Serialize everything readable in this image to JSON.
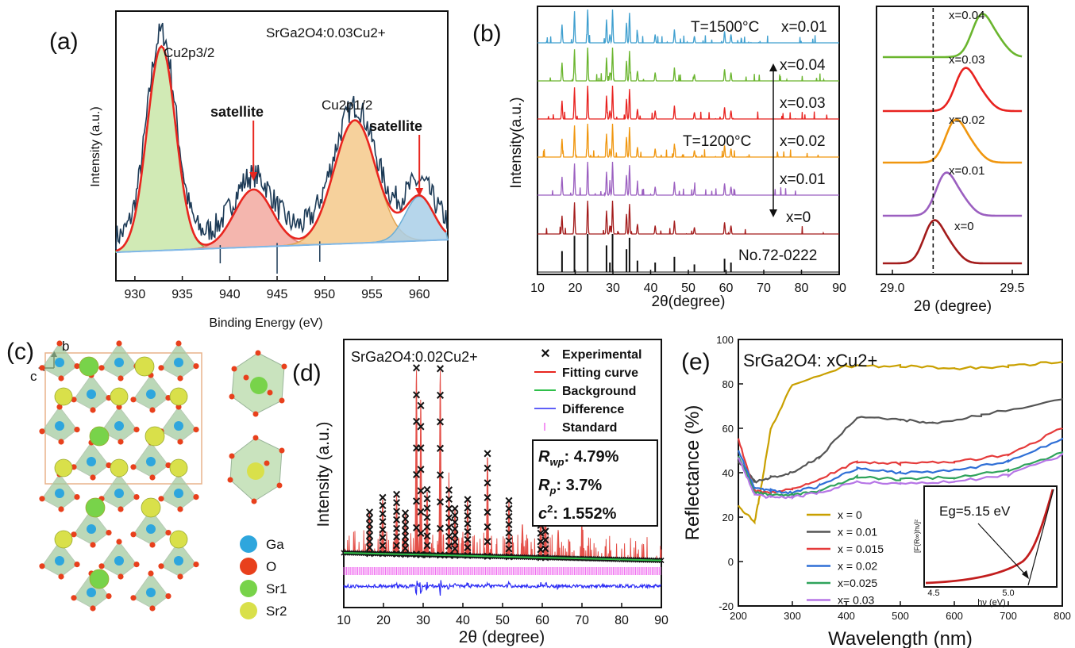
{
  "panels": {
    "a": {
      "label": "(a)",
      "formula": "SrGa2O4:0.03Cu2+",
      "peak1": "Cu2p3/2",
      "peak2": "Cu2p1/2",
      "sat1": "satellite",
      "sat2": "satellite",
      "xlabel": "Binding Energy (eV)",
      "ylabel": "Intensity (a.u.)",
      "xticks": [
        "930",
        "935",
        "940",
        "945",
        "950",
        "955",
        "960"
      ]
    },
    "b": {
      "label": "(b)",
      "t1500": "T=1500°C",
      "t1200": "T=1200°C",
      "x_top": "x=0.01",
      "x004": "x=0.04",
      "x003": "x=0.03",
      "x002": "x=0.02",
      "x001": "x=0.01",
      "x0": "x=0",
      "std": "No.72-0222",
      "xlabel": "2θ(degree)",
      "ylabel": "Intensity(a.u.)",
      "xticks": [
        "10",
        "20",
        "30",
        "40",
        "50",
        "60",
        "70",
        "80",
        "90"
      ],
      "inset_labels": [
        "x=0.04",
        "x=0.03",
        "x=0.02",
        "x=0.01",
        "x=0"
      ],
      "inset_xlabel": "2θ (degree)",
      "inset_xticks": [
        "29.0",
        "29.5"
      ]
    },
    "c": {
      "label": "(c)",
      "axis_b": "b",
      "axis_c": "c",
      "legend": [
        "Ga",
        "O",
        "Sr1",
        "Sr2"
      ]
    },
    "d": {
      "label": "(d)",
      "formula": "SrGa2O4:0.02Cu2+",
      "legend": [
        "Experimental",
        "Fitting curve",
        "Background",
        "Difference",
        "Standard"
      ],
      "rwp": ": 4.79%",
      "rp": ": 3.7%",
      "c2": ": 1.552%",
      "xlabel": "2θ (degree)",
      "ylabel": "Intensity (a.u.)",
      "xticks": [
        "10",
        "20",
        "30",
        "40",
        "50",
        "60",
        "70",
        "80",
        "90"
      ]
    },
    "e": {
      "label": "(e)",
      "formula": "SrGa2O4: xCu2+",
      "xlabel": "Wavelength (nm)",
      "ylabel": "Reflectance (%)",
      "xticks": [
        "200",
        "300",
        "400",
        "500",
        "600",
        "700",
        "800"
      ],
      "yticks": [
        "-20",
        "0",
        "20",
        "40",
        "60",
        "80",
        "100"
      ],
      "legend": [
        "x = 0",
        "x = 0.01",
        "x = 0.015",
        "x = 0.02",
        "x=0.025",
        "x= 0.03"
      ],
      "inset_eg": "Eg=5.15 eV",
      "inset_xlabel": "hν (eV)",
      "inset_ylabel": "[F(R∞)hν]²",
      "inset_xticks": [
        "4.5",
        "5.0"
      ]
    }
  },
  "chart_data": [
    {
      "panel": "a",
      "type": "line",
      "xlim": [
        928,
        963
      ],
      "peaks": [
        {
          "name": "Cu2p3/2",
          "center": 932.8,
          "height": 0.78
        },
        {
          "name": "satellite",
          "center": 942.5,
          "height": 0.22
        },
        {
          "name": "Cu2p1/2",
          "center": 953.2,
          "height": 0.47
        },
        {
          "name": "satellite",
          "center": 960.0,
          "height": 0.17
        }
      ]
    },
    {
      "panel": "b",
      "type": "line",
      "xlim": [
        10,
        90
      ],
      "series": [
        {
          "name": "x=0.01 (T=1500°C)",
          "color": "#3f9fcf"
        },
        {
          "name": "x=0.04",
          "color": "#6ab52e"
        },
        {
          "name": "x=0.03",
          "color": "#e8221f"
        },
        {
          "name": "x=0.02",
          "color": "#f0960e"
        },
        {
          "name": "x=0.01",
          "color": "#9b5fc0"
        },
        {
          "name": "x=0",
          "color": "#a31b1b"
        },
        {
          "name": "No.72-0222",
          "color": "#111111"
        }
      ],
      "peak_positions": [
        16.5,
        19.8,
        23.3,
        28.3,
        29.2,
        29.9,
        33.6,
        34.4,
        36.5,
        41.2,
        46.3,
        51.6,
        59.6,
        61.3
      ]
    },
    {
      "panel": "b-inset",
      "type": "line",
      "xlim": [
        29.0,
        29.5
      ],
      "reference_line": 29.17,
      "peak_centers": [
        {
          "name": "x=0",
          "value": 29.17
        },
        {
          "name": "x=0.01",
          "value": 29.22
        },
        {
          "name": "x=0.02",
          "value": 29.26
        },
        {
          "name": "x=0.03",
          "value": 29.3
        },
        {
          "name": "x=0.04",
          "value": 29.37
        }
      ]
    },
    {
      "panel": "d",
      "type": "scatter",
      "xlim": [
        10,
        90
      ],
      "strong_peaks": [
        28.3,
        29.4,
        34.3,
        46.2,
        60.8
      ],
      "rwp": 4.79,
      "rp": 3.7,
      "chi2": 1.552
    },
    {
      "panel": "e",
      "type": "line",
      "xlim": [
        200,
        800
      ],
      "ylim": [
        -20,
        100
      ],
      "series": [
        {
          "name": "x = 0",
          "color": "#c9a000",
          "x": [
            200,
            230,
            240,
            260,
            300,
            400,
            500,
            600,
            700,
            800
          ],
          "y": [
            25,
            18,
            30,
            60,
            80,
            88,
            88,
            87,
            88,
            90
          ]
        },
        {
          "name": "x = 0.01",
          "color": "#555555",
          "x": [
            200,
            230,
            260,
            300,
            350,
            420,
            500,
            560,
            650,
            800
          ],
          "y": [
            45,
            36,
            38,
            40,
            47,
            65,
            64,
            62,
            66,
            73
          ]
        },
        {
          "name": "x = 0.015",
          "color": "#e53b3b",
          "x": [
            200,
            230,
            260,
            300,
            350,
            420,
            500,
            600,
            700,
            800
          ],
          "y": [
            55,
            32,
            31,
            33,
            37,
            45,
            44,
            45,
            48,
            60
          ]
        },
        {
          "name": "x = 0.02",
          "color": "#2f6fd6",
          "x": [
            200,
            230,
            260,
            300,
            350,
            420,
            500,
            600,
            700,
            800
          ],
          "y": [
            50,
            33,
            32,
            31,
            34,
            42,
            40,
            41,
            45,
            55
          ]
        },
        {
          "name": "x=0.025",
          "color": "#2fa35b",
          "x": [
            200,
            230,
            260,
            300,
            350,
            420,
            500,
            600,
            700,
            800
          ],
          "y": [
            48,
            31,
            30,
            30,
            32,
            38,
            37,
            38,
            41,
            49
          ]
        },
        {
          "name": "x= 0.03",
          "color": "#b675e6",
          "x": [
            200,
            230,
            260,
            300,
            350,
            420,
            500,
            600,
            700,
            800
          ],
          "y": [
            47,
            30,
            29,
            29,
            31,
            36,
            35,
            36,
            39,
            48
          ]
        }
      ],
      "inset": {
        "eg_ev": 5.15
      }
    }
  ]
}
